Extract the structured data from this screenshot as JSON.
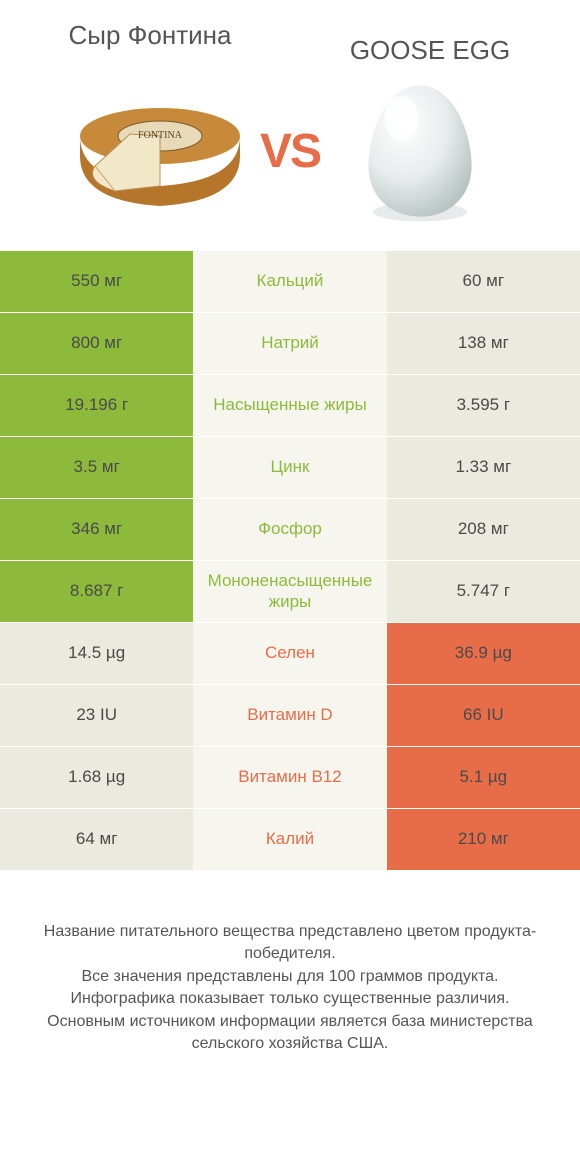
{
  "colors": {
    "left_win": "#8dba3b",
    "right_win": "#e76d49",
    "lose": "#eaeadf",
    "mid_bg": "#f6f6ef",
    "value_text": "#4a4a4a",
    "title_text": "#555555",
    "vs_text": "#e76d49",
    "body_bg": "#ffffff"
  },
  "header": {
    "left_title": "Сыр Фонтина",
    "right_title": "GOOSE EGG",
    "vs": "VS"
  },
  "rows": [
    {
      "nutrient": "Кальций",
      "left": "550 мг",
      "right": "60 мг",
      "winner": "left"
    },
    {
      "nutrient": "Натрий",
      "left": "800 мг",
      "right": "138 мг",
      "winner": "left"
    },
    {
      "nutrient": "Насыщенные жиры",
      "left": "19.196 г",
      "right": "3.595 г",
      "winner": "left"
    },
    {
      "nutrient": "Цинк",
      "left": "3.5 мг",
      "right": "1.33 мг",
      "winner": "left"
    },
    {
      "nutrient": "Фосфор",
      "left": "346 мг",
      "right": "208 мг",
      "winner": "left"
    },
    {
      "nutrient": "Мононенасыщенные жиры",
      "left": "8.687 г",
      "right": "5.747 г",
      "winner": "left"
    },
    {
      "nutrient": "Селен",
      "left": "14.5 µg",
      "right": "36.9 µg",
      "winner": "right"
    },
    {
      "nutrient": "Витамин D",
      "left": "23 IU",
      "right": "66 IU",
      "winner": "right"
    },
    {
      "nutrient": "Витамин B12",
      "left": "1.68 µg",
      "right": "5.1 µg",
      "winner": "right"
    },
    {
      "nutrient": "Калий",
      "left": "64 мг",
      "right": "210 мг",
      "winner": "right"
    }
  ],
  "footer": {
    "line1": "Название питательного вещества представлено цветом продукта-победителя.",
    "line2": "Все значения представлены для 100 граммов продукта.",
    "line3": "Инфографика показывает только существенные различия.",
    "line4": "Основным источником информации является база министерства сельского хозяйства США."
  }
}
